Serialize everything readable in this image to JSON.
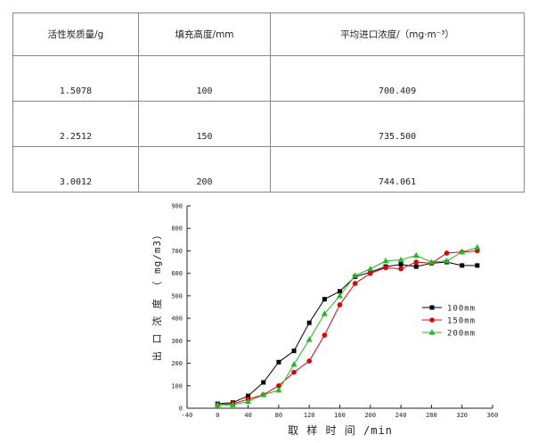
{
  "table": {
    "headers": [
      "活性炭质量/g",
      "填充高度/mm",
      "平均进口浓度/（mg·m⁻³）"
    ],
    "rows": [
      [
        "1.5078",
        "100",
        "700.409"
      ],
      [
        "2.2512",
        "150",
        "735.500"
      ],
      [
        "3.0012",
        "200",
        "744.061"
      ]
    ]
  },
  "chart_data": {
    "type": "line",
    "xlabel": "取 样 时 间 /min",
    "ylabel": "出 口 浓 度 （ mg/m3）",
    "xlim": [
      -40,
      360
    ],
    "ylim": [
      0,
      900
    ],
    "xticks": [
      -40,
      0,
      40,
      80,
      120,
      160,
      200,
      240,
      280,
      320,
      360
    ],
    "yticks": [
      0,
      100,
      200,
      300,
      400,
      500,
      600,
      700,
      800,
      900
    ],
    "legend_position": "right-middle",
    "series": [
      {
        "name": "100mm",
        "color": "#000000",
        "marker": "square",
        "x": [
          0,
          20,
          40,
          60,
          80,
          100,
          120,
          140,
          160,
          180,
          200,
          220,
          240,
          260,
          280,
          300,
          320,
          340
        ],
        "y": [
          20,
          25,
          55,
          115,
          205,
          255,
          380,
          485,
          520,
          585,
          605,
          630,
          640,
          630,
          645,
          650,
          635,
          635
        ]
      },
      {
        "name": "150mm",
        "color": "#e00000",
        "marker": "circle",
        "x": [
          0,
          20,
          40,
          60,
          80,
          100,
          120,
          140,
          160,
          180,
          200,
          220,
          240,
          260,
          280,
          300,
          320,
          340
        ],
        "y": [
          15,
          20,
          40,
          60,
          100,
          160,
          210,
          325,
          460,
          555,
          600,
          625,
          620,
          650,
          645,
          690,
          695,
          700
        ]
      },
      {
        "name": "200mm",
        "color": "#22bb22",
        "marker": "triangle",
        "x": [
          0,
          20,
          40,
          60,
          80,
          100,
          120,
          140,
          160,
          180,
          200,
          220,
          240,
          260,
          280,
          300,
          320,
          340
        ],
        "y": [
          15,
          15,
          30,
          60,
          80,
          195,
          305,
          420,
          500,
          590,
          620,
          655,
          660,
          680,
          650,
          655,
          695,
          715
        ]
      }
    ]
  }
}
